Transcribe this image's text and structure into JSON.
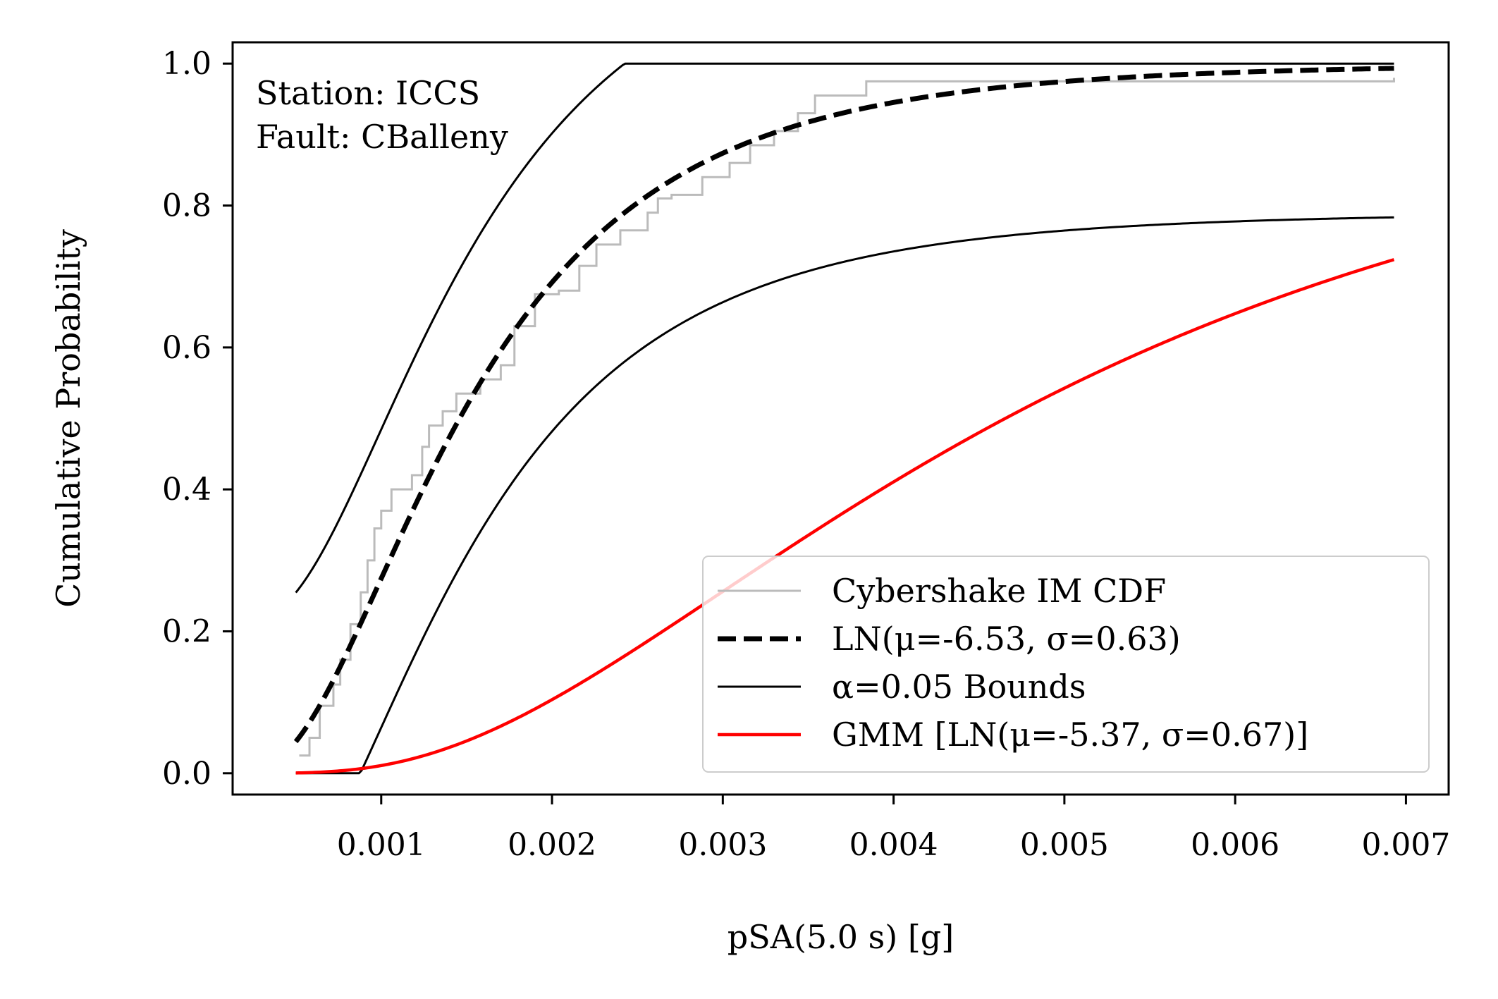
{
  "chart_data": {
    "type": "line",
    "title": "",
    "xlabel": "pSA(5.0 s) [g]",
    "ylabel": "Cumulative Probability",
    "xlim": [
      0.00013,
      0.00725
    ],
    "ylim": [
      -0.03,
      1.03
    ],
    "xticks": [
      0.001,
      0.002,
      0.003,
      0.004,
      0.005,
      0.006,
      0.007
    ],
    "xtick_labels": [
      "0.001",
      "0.002",
      "0.003",
      "0.004",
      "0.005",
      "0.006",
      "0.007"
    ],
    "yticks": [
      0.0,
      0.2,
      0.4,
      0.6,
      0.8,
      1.0
    ],
    "ytick_labels": [
      "0.0",
      "0.2",
      "0.4",
      "0.6",
      "0.8",
      "1.0"
    ],
    "grid": false,
    "legend_position": "lower-right",
    "annotation_lines": [
      "Station: ICCS",
      "Fault: CBalleny"
    ],
    "series": [
      {
        "name": "Cybershake IM CDF",
        "style": "step",
        "color": "#bbbbbb",
        "x": [
          0.00052,
          0.00058,
          0.00064,
          0.00072,
          0.00076,
          0.00082,
          0.00088,
          0.00092,
          0.00096,
          0.001,
          0.00106,
          0.00118,
          0.00124,
          0.00128,
          0.00136,
          0.00144,
          0.00158,
          0.0017,
          0.00178,
          0.0019,
          0.00204,
          0.00216,
          0.00226,
          0.0024,
          0.00256,
          0.00262,
          0.0027,
          0.00288,
          0.003,
          0.00304,
          0.00316,
          0.0033,
          0.00344,
          0.00354,
          0.00384,
          0.0043,
          0.005,
          0.006,
          0.00693
        ],
        "y": [
          0.025,
          0.05,
          0.095,
          0.125,
          0.16,
          0.21,
          0.255,
          0.3,
          0.345,
          0.37,
          0.4,
          0.42,
          0.46,
          0.49,
          0.51,
          0.535,
          0.555,
          0.575,
          0.63,
          0.675,
          0.68,
          0.715,
          0.745,
          0.765,
          0.79,
          0.81,
          0.815,
          0.84,
          0.84,
          0.86,
          0.885,
          0.905,
          0.93,
          0.955,
          0.975,
          0.975,
          0.975,
          0.975,
          0.98
        ]
      },
      {
        "name": "LN(μ=-6.53, σ=0.63)",
        "style": "dashed",
        "color": "#000000",
        "mu": -6.53,
        "sigma": 0.63
      },
      {
        "name": "α=0.05 Bounds",
        "style": "solid",
        "color": "#000000",
        "mu": -6.53,
        "sigma": 0.63,
        "band": 0.21
      },
      {
        "name": "GMM [LN(μ=-5.37, σ=0.67)]",
        "style": "solid",
        "color": "#ff0000",
        "mu": -5.37,
        "sigma": 0.67
      }
    ],
    "x_range": [
      0.0005,
      0.00693
    ]
  }
}
